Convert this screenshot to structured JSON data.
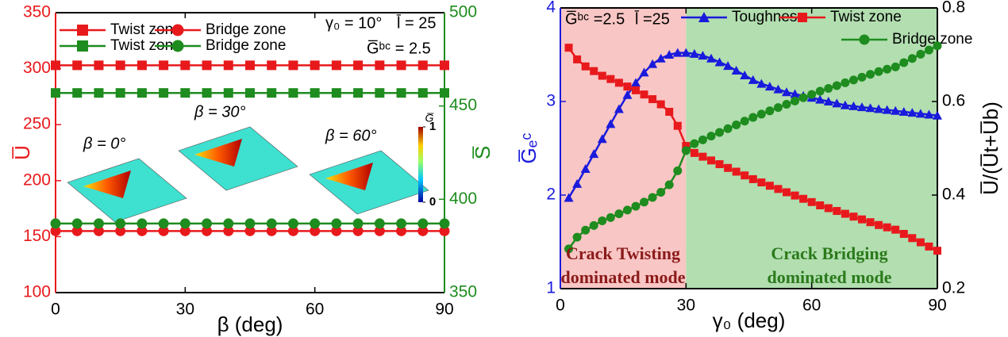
{
  "chart_data": [
    {
      "type": "line",
      "xlabel": "β (deg)",
      "ylabel": "U̅",
      "y2label": "S̅",
      "xlim": [
        0,
        90
      ],
      "xticks": [
        0,
        30,
        60,
        90
      ],
      "ylim": [
        100,
        350
      ],
      "yticks": [
        100,
        150,
        200,
        250,
        300,
        350
      ],
      "ycolor": "#e8191c",
      "y2lim": [
        350,
        500
      ],
      "y2ticks": [
        350,
        400,
        450,
        500
      ],
      "y2color": "#1e8c1e",
      "x": [
        0,
        5,
        10,
        15,
        20,
        25,
        30,
        35,
        40,
        45,
        50,
        55,
        60,
        65,
        70,
        75,
        80,
        85,
        90
      ],
      "series": [
        {
          "name": "Twist zone",
          "color": "#e8191c",
          "marker": "square",
          "values": [
            303,
            303,
            303,
            303,
            303,
            303,
            303,
            303,
            303,
            303,
            303,
            303,
            303,
            303,
            303,
            303,
            303,
            303,
            303
          ]
        },
        {
          "name": "Bridge zone",
          "color": "#e8191c",
          "marker": "circle",
          "values": [
            155,
            155,
            155,
            155,
            155,
            155,
            155,
            155,
            155,
            155,
            155,
            155,
            155,
            155,
            155,
            155,
            155,
            155,
            155
          ]
        },
        {
          "name": "Twist zone",
          "color": "#1e8c1e",
          "marker": "square",
          "axis": "y2",
          "values": [
            457,
            457,
            457,
            457,
            457,
            457,
            457,
            457,
            457,
            457,
            457,
            457,
            457,
            457,
            457,
            457,
            457,
            457,
            457
          ]
        },
        {
          "name": "Bridge zone",
          "color": "#1e8c1e",
          "marker": "circle",
          "axis": "y2",
          "values": [
            387,
            387,
            387,
            387,
            387,
            387,
            387,
            387,
            387,
            387,
            387,
            387,
            387,
            387,
            387,
            387,
            387,
            387,
            387
          ]
        }
      ],
      "annotations": [
        "γ₀ = 10°",
        "l̄ = 25",
        "G̅ᵇᶜ = 2.5"
      ],
      "insets": [
        "β = 0°",
        "β = 30°",
        "β = 60°"
      ],
      "colorbar": {
        "label": "G̅",
        "ticks": [
          0,
          1
        ]
      }
    },
    {
      "type": "line",
      "xlabel": "γ₀ (deg)",
      "ylabel": "G̅ₑᶜ",
      "y2label": "U̅/(U̅t+U̅b)",
      "xlim": [
        0,
        90
      ],
      "xticks": [
        0,
        30,
        60,
        90
      ],
      "ylim": [
        1,
        4
      ],
      "yticks": [
        1,
        2,
        3,
        4
      ],
      "ycolor": "#1a1adc",
      "y2lim": [
        0.2,
        0.8
      ],
      "y2ticks": [
        0.2,
        0.4,
        0.6,
        0.8
      ],
      "y2color": "#000000",
      "regions": [
        {
          "x": [
            0,
            30
          ],
          "color": "#f8c6c4"
        },
        {
          "x": [
            30,
            90
          ],
          "color": "#b2deb0"
        }
      ],
      "x": [
        2,
        4,
        6,
        8,
        10,
        12,
        14,
        16,
        18,
        20,
        22,
        24,
        26,
        28,
        30,
        32,
        34,
        36,
        38,
        40,
        42,
        44,
        46,
        48,
        50,
        52,
        54,
        56,
        58,
        60,
        62,
        64,
        66,
        68,
        70,
        72,
        74,
        76,
        78,
        80,
        82,
        84,
        86,
        88,
        90
      ],
      "series": [
        {
          "name": "Toughness",
          "color": "#1a1adc",
          "marker": "triangle",
          "values": [
            1.97,
            2.12,
            2.28,
            2.44,
            2.6,
            2.76,
            2.92,
            3.07,
            3.2,
            3.31,
            3.4,
            3.46,
            3.5,
            3.52,
            3.52,
            3.51,
            3.49,
            3.46,
            3.42,
            3.38,
            3.33,
            3.28,
            3.23,
            3.19,
            3.16,
            3.13,
            3.1,
            3.08,
            3.06,
            3.04,
            3.02,
            3.0,
            2.98,
            2.96,
            2.95,
            2.94,
            2.93,
            2.92,
            2.91,
            2.9,
            2.89,
            2.88,
            2.87,
            2.86,
            2.85
          ]
        },
        {
          "name": "Twist zone",
          "color": "#e8191c",
          "marker": "square",
          "axis": "y2",
          "values": [
            0.715,
            0.69,
            0.675,
            0.665,
            0.655,
            0.648,
            0.64,
            0.632,
            0.624,
            0.615,
            0.605,
            0.594,
            0.578,
            0.548,
            0.505,
            0.49,
            0.482,
            0.474,
            0.466,
            0.458,
            0.45,
            0.442,
            0.434,
            0.427,
            0.42,
            0.413,
            0.406,
            0.399,
            0.392,
            0.385,
            0.378,
            0.372,
            0.366,
            0.36,
            0.354,
            0.348,
            0.342,
            0.336,
            0.331,
            0.326,
            0.317,
            0.308,
            0.299,
            0.29,
            0.281
          ]
        },
        {
          "name": "Bridge zone",
          "color": "#1e8c1e",
          "marker": "circle",
          "axis": "y2",
          "values": [
            0.285,
            0.31,
            0.325,
            0.335,
            0.345,
            0.352,
            0.36,
            0.368,
            0.376,
            0.385,
            0.395,
            0.406,
            0.422,
            0.452,
            0.495,
            0.51,
            0.518,
            0.526,
            0.534,
            0.542,
            0.55,
            0.558,
            0.566,
            0.573,
            0.58,
            0.587,
            0.594,
            0.601,
            0.608,
            0.615,
            0.622,
            0.628,
            0.634,
            0.64,
            0.646,
            0.652,
            0.658,
            0.664,
            0.669,
            0.674,
            0.683,
            0.692,
            0.701,
            0.71,
            0.719
          ]
        }
      ],
      "annotations": [
        "G̅ᵇᶜ =2.5",
        "l̄ =25",
        "Crack Twisting",
        "dominated mode",
        "Crack Bridging",
        "dominated mode"
      ]
    }
  ]
}
